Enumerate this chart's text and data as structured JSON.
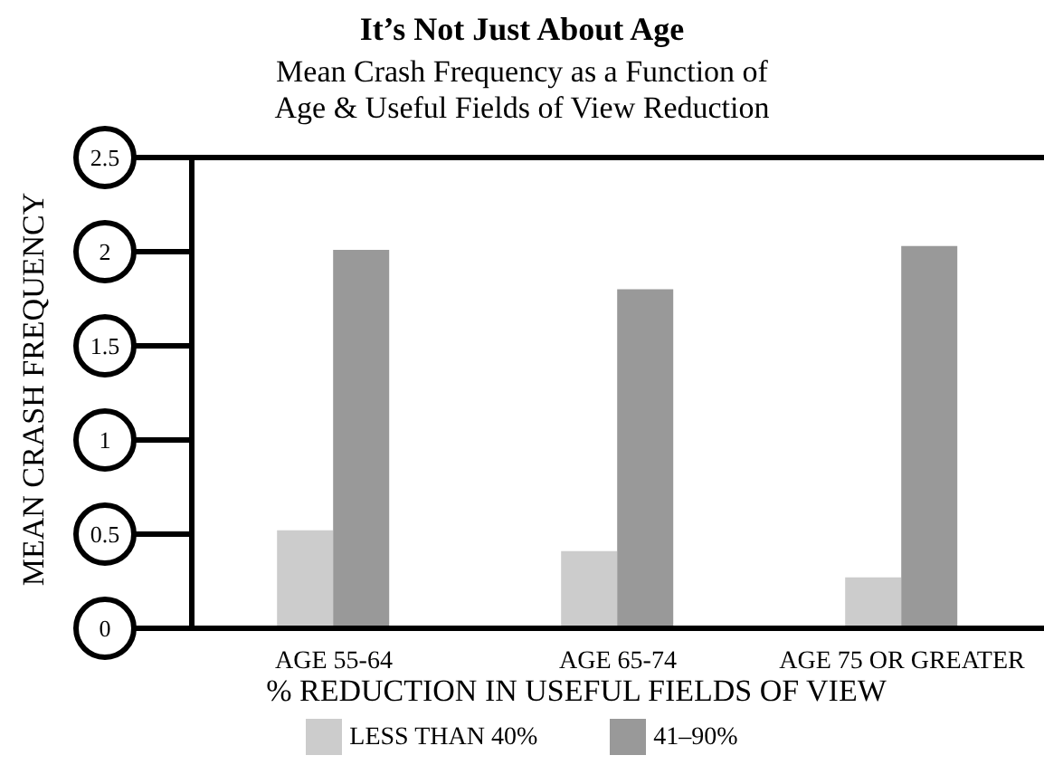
{
  "chart_data": {
    "type": "bar",
    "title": "It’s Not Just About Age",
    "subtitle": "Mean Crash Frequency as a Function of\nAge & Useful Fields of View Reduction",
    "xlabel": "% REDUCTION IN USEFUL FIELDS OF VIEW",
    "ylabel": "MEAN CRASH FREQUENCY",
    "categories": [
      "AGE 55-64",
      "AGE 65-74",
      "AGE 75 OR GREATER"
    ],
    "series": [
      {
        "name": "LESS THAN 40%",
        "color": "#cccccc",
        "values": [
          0.52,
          0.41,
          0.27
        ]
      },
      {
        "name": "41–90%",
        "color": "#999999",
        "values": [
          2.01,
          1.8,
          2.03
        ]
      }
    ],
    "ylim": [
      0,
      2.5
    ],
    "yticks": [
      0,
      0.5,
      1,
      1.5,
      2,
      2.5
    ],
    "legend": "bottom"
  }
}
